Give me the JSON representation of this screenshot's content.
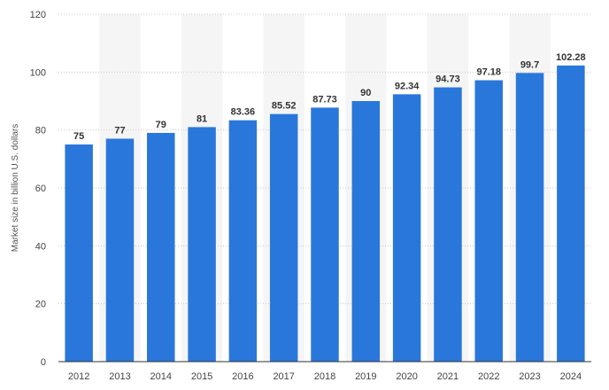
{
  "chart_data": {
    "type": "bar",
    "categories": [
      "2012",
      "2013",
      "2014",
      "2015",
      "2016",
      "2017",
      "2018",
      "2019",
      "2020",
      "2021",
      "2022",
      "2023",
      "2024"
    ],
    "values": [
      75,
      77,
      79,
      81,
      83.36,
      85.52,
      87.73,
      90,
      92.34,
      94.73,
      97.18,
      99.7,
      102.28
    ],
    "value_labels": [
      "75",
      "77",
      "79",
      "81",
      "83.36",
      "85.52",
      "87.73",
      "90",
      "92.34",
      "94.73",
      "97.18",
      "99.7",
      "102.28"
    ],
    "ylabel": "Market size in billion U.S. dollars",
    "xlabel": "",
    "ylim": [
      0,
      120
    ],
    "yticks": [
      0,
      20,
      40,
      60,
      80,
      100,
      120
    ],
    "grid": true,
    "bar_color": "#2A77DB",
    "band_color": "#F5F5F5"
  }
}
